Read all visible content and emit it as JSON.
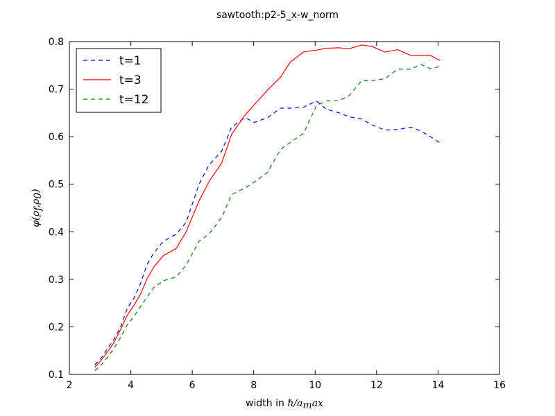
{
  "chart_data": {
    "type": "line",
    "title": "sawtooth:p2-5_x-w_norm",
    "xlabel_prefix": "width in ",
    "xlabel_math": "ℏ/a",
    "xlabel_sub": "m",
    "xlabel_suffix": "ax",
    "ylabel_math": "φ(ρ",
    "ylabel_sub1": "f",
    "ylabel_mid": ",ρ",
    "ylabel_sub2": "0",
    "ylabel_end": ")",
    "xlim": [
      2,
      16
    ],
    "ylim": [
      0.1,
      0.8
    ],
    "xticks": [
      2,
      4,
      6,
      8,
      10,
      12,
      14,
      16
    ],
    "yticks": [
      0.1,
      0.2,
      0.3,
      0.4,
      0.5,
      0.6,
      0.7,
      0.8
    ],
    "xtick_labels": [
      "2",
      "4",
      "6",
      "8",
      "10",
      "12",
      "14",
      "16"
    ],
    "ytick_labels": [
      "0.1",
      "0.2",
      "0.3",
      "0.4",
      "0.5",
      "0.6",
      "0.7",
      "0.8"
    ],
    "grid": false,
    "legend_position": "top-left",
    "series": [
      {
        "name": "t=1",
        "color": "#0000ff",
        "style": "dashed",
        "x": [
          2.83,
          3.04,
          3.25,
          3.46,
          3.67,
          3.89,
          4.1,
          4.31,
          4.52,
          4.74,
          5.06,
          5.48,
          5.8,
          6.22,
          6.54,
          6.96,
          7.28,
          7.71,
          8.03,
          8.45,
          8.87,
          9.19,
          9.62,
          10.04,
          10.36,
          10.78,
          11.1,
          11.52,
          11.84,
          12.27,
          12.69,
          13.11,
          13.44,
          13.75,
          14.07
        ],
        "y": [
          0.12,
          0.135,
          0.155,
          0.175,
          0.2,
          0.24,
          0.26,
          0.29,
          0.33,
          0.355,
          0.38,
          0.395,
          0.42,
          0.5,
          0.54,
          0.57,
          0.62,
          0.64,
          0.63,
          0.64,
          0.66,
          0.66,
          0.662,
          0.675,
          0.658,
          0.65,
          0.642,
          0.637,
          0.625,
          0.614,
          0.615,
          0.62,
          0.612,
          0.6,
          0.587
        ]
      },
      {
        "name": "t=3",
        "color": "#ff0000",
        "style": "solid",
        "x": [
          2.83,
          3.04,
          3.25,
          3.46,
          3.67,
          3.89,
          4.1,
          4.31,
          4.52,
          4.74,
          5.06,
          5.48,
          5.8,
          6.22,
          6.54,
          6.96,
          7.28,
          7.71,
          8.03,
          8.45,
          8.87,
          9.19,
          9.62,
          10.04,
          10.36,
          10.78,
          11.1,
          11.52,
          11.84,
          12.27,
          12.69,
          13.11,
          13.44,
          13.75,
          14.07
        ],
        "y": [
          0.115,
          0.13,
          0.148,
          0.168,
          0.195,
          0.225,
          0.245,
          0.268,
          0.3,
          0.325,
          0.35,
          0.365,
          0.4,
          0.465,
          0.505,
          0.545,
          0.605,
          0.645,
          0.668,
          0.698,
          0.725,
          0.757,
          0.778,
          0.782,
          0.786,
          0.787,
          0.785,
          0.793,
          0.79,
          0.778,
          0.783,
          0.771,
          0.771,
          0.771,
          0.76
        ]
      },
      {
        "name": "t=12",
        "color": "#008000",
        "style": "dashed",
        "x": [
          2.83,
          3.04,
          3.25,
          3.46,
          3.67,
          3.89,
          4.1,
          4.31,
          4.52,
          4.74,
          5.06,
          5.48,
          5.8,
          6.22,
          6.54,
          6.96,
          7.28,
          7.71,
          8.03,
          8.45,
          8.87,
          9.19,
          9.62,
          10.04,
          10.36,
          10.78,
          11.1,
          11.52,
          11.84,
          12.27,
          12.69,
          13.11,
          13.44,
          13.75,
          14.07
        ],
        "y": [
          0.108,
          0.12,
          0.137,
          0.155,
          0.178,
          0.205,
          0.222,
          0.242,
          0.262,
          0.282,
          0.297,
          0.305,
          0.33,
          0.38,
          0.395,
          0.43,
          0.478,
          0.492,
          0.505,
          0.525,
          0.573,
          0.588,
          0.607,
          0.665,
          0.675,
          0.676,
          0.686,
          0.718,
          0.718,
          0.722,
          0.742,
          0.742,
          0.752,
          0.743,
          0.748
        ]
      }
    ]
  }
}
